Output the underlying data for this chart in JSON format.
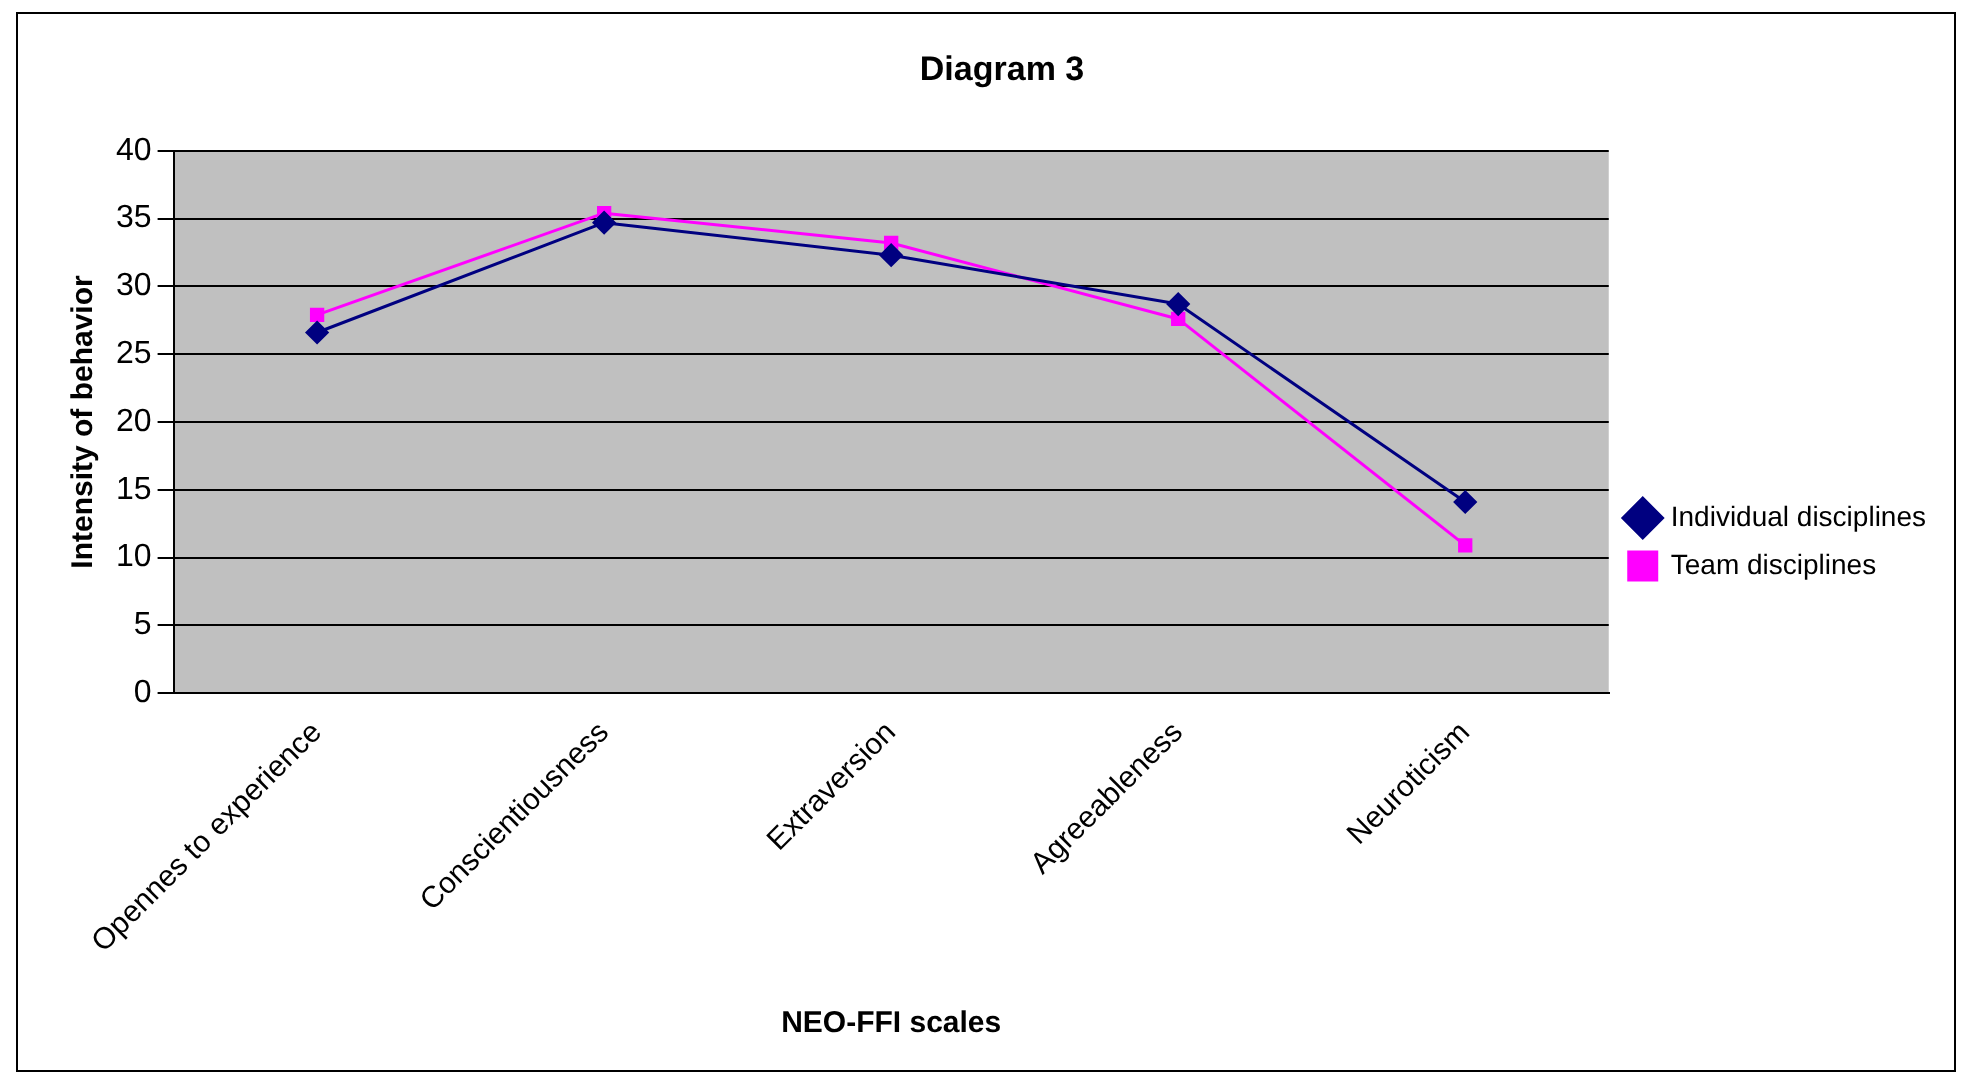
{
  "chart_data": {
    "type": "line",
    "title": "Diagram 3",
    "xlabel": "NEO-FFI scales",
    "ylabel": "Intensity of behavior",
    "categories": [
      "Opennes to experience",
      "Conscientiousness",
      "Extraversion",
      "Agreeableness",
      "Neuroticism"
    ],
    "series": [
      {
        "name": "Individual disciplines",
        "color": "#000080",
        "marker": "diamond",
        "values": [
          26.6,
          34.7,
          32.3,
          28.7,
          14.1
        ]
      },
      {
        "name": "Team disciplines",
        "color": "#ff00ff",
        "marker": "square",
        "values": [
          27.9,
          35.4,
          33.2,
          27.6,
          10.9
        ]
      }
    ],
    "ylim": [
      0,
      40
    ],
    "yticks": [
      0,
      5,
      10,
      15,
      20,
      25,
      30,
      35,
      40
    ],
    "grid": "y",
    "legend": "right"
  }
}
